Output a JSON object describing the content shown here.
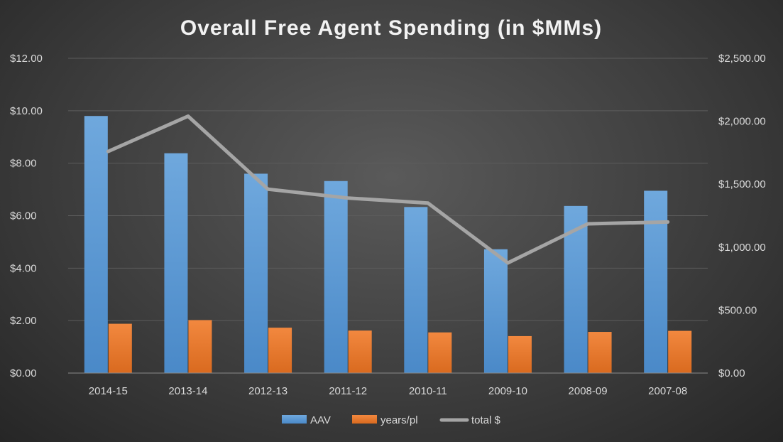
{
  "chart_data": {
    "type": "bar",
    "title": "Overall Free Agent Spending (in $MMs)",
    "categories": [
      "2014-15",
      "2013-14",
      "2012-13",
      "2011-12",
      "2010-11",
      "2009-10",
      "2008-09",
      "2007-08"
    ],
    "series": [
      {
        "name": "AAV",
        "axis": "left",
        "kind": "bar",
        "color": "#5b9bd5",
        "values": [
          9.8,
          8.38,
          7.6,
          7.32,
          6.33,
          4.72,
          6.37,
          6.95
        ]
      },
      {
        "name": "years/pl",
        "axis": "left",
        "kind": "bar",
        "color": "#ed7d31",
        "values": [
          1.88,
          2.02,
          1.73,
          1.62,
          1.55,
          1.41,
          1.57,
          1.61
        ]
      },
      {
        "name": "total $",
        "axis": "right",
        "kind": "line",
        "color": "#a5a5a5",
        "values": [
          1760,
          2040,
          1460,
          1390,
          1350,
          875,
          1185,
          1200
        ]
      }
    ],
    "yaxis_left": {
      "min": 0,
      "max": 12,
      "step": 2,
      "tick_labels": [
        "$0.00",
        "$2.00",
        "$4.00",
        "$6.00",
        "$8.00",
        "$10.00",
        "$12.00"
      ]
    },
    "yaxis_right": {
      "min": 0,
      "max": 2500,
      "step": 500,
      "tick_labels": [
        "$0.00",
        "$500.00",
        "$1,000.00",
        "$1,500.00",
        "$2,000.00",
        "$2,500.00"
      ]
    },
    "grid": true,
    "legend_position": "bottom"
  }
}
